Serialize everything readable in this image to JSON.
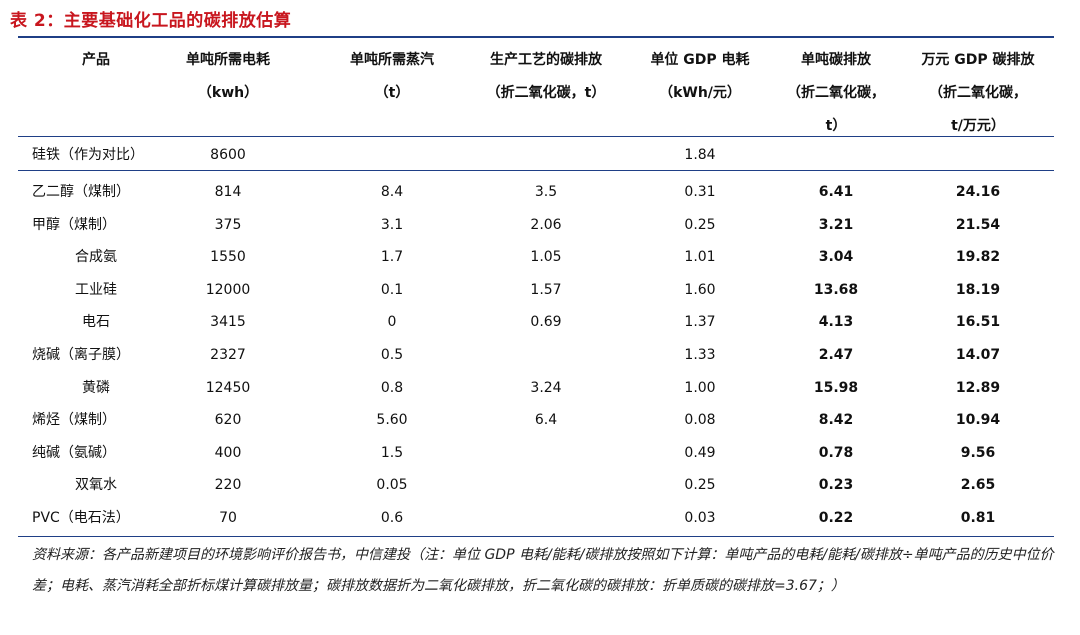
{
  "title": "表 2：主要基础化工品的碳排放估算",
  "columns": [
    {
      "lines": [
        "产品"
      ]
    },
    {
      "lines": [
        "单吨所需电耗",
        "（kwh）"
      ]
    },
    {
      "lines": [
        "单吨所需蒸汽",
        "（t）"
      ]
    },
    {
      "lines": [
        "生产工艺的碳排放",
        "（折二氧化碳，t）"
      ]
    },
    {
      "lines": [
        "单位 GDP 电耗",
        "（kWh/元）"
      ]
    },
    {
      "lines": [
        "单吨碳排放",
        "（折二氧化碳，",
        "t）"
      ]
    },
    {
      "lines": [
        "万元 GDP 碳排放",
        "（折二氧化碳，",
        "t/万元）"
      ]
    }
  ],
  "reference_row": [
    "硅铁（作为对比）",
    "8600",
    "",
    "",
    "1.84",
    "",
    ""
  ],
  "rows": [
    [
      "乙二醇（煤制）",
      "814",
      "8.4",
      "3.5",
      "0.31",
      "6.41",
      "24.16"
    ],
    [
      "甲醇（煤制）",
      "375",
      "3.1",
      "2.06",
      "0.25",
      "3.21",
      "21.54"
    ],
    [
      "合成氨",
      "1550",
      "1.7",
      "1.05",
      "1.01",
      "3.04",
      "19.82"
    ],
    [
      "工业硅",
      "12000",
      "0.1",
      "1.57",
      "1.60",
      "13.68",
      "18.19"
    ],
    [
      "电石",
      "3415",
      "0",
      "0.69",
      "1.37",
      "4.13",
      "16.51"
    ],
    [
      "烧碱（离子膜）",
      "2327",
      "0.5",
      "",
      "1.33",
      "2.47",
      "14.07"
    ],
    [
      "黄磷",
      "12450",
      "0.8",
      "3.24",
      "1.00",
      "15.98",
      "12.89"
    ],
    [
      "烯烃（煤制）",
      "620",
      "5.60",
      "6.4",
      "0.08",
      "8.42",
      "10.94"
    ],
    [
      "纯碱（氨碱）",
      "400",
      "1.5",
      "",
      "0.49",
      "0.78",
      "9.56"
    ],
    [
      "双氧水",
      "220",
      "0.05",
      "",
      "0.25",
      "0.23",
      "2.65"
    ],
    [
      "PVC（电石法）",
      "70",
      "0.6",
      "",
      "0.03",
      "0.22",
      "0.81"
    ]
  ],
  "footnote": "资料来源：各产品新建项目的环境影响评价报告书，中信建投（注：单位 GDP 电耗/能耗/碳排放按照如下计算：单吨产品的电耗/能耗/碳排放÷单吨产品的历史中位价差；电耗、蒸汽消耗全部折标煤计算碳排放量；碳排放数据折为二氧化碳排放，折二氧化碳的碳排放：折单质碳的碳排放=3.67；）"
}
